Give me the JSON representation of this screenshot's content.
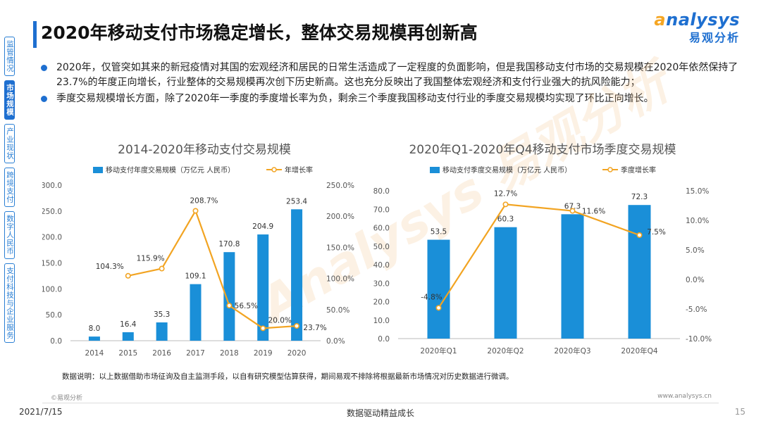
{
  "sidebar": {
    "items": [
      {
        "label": "监管情况",
        "active": false
      },
      {
        "label": "市场规模",
        "active": true
      },
      {
        "label": "产业现状",
        "active": false
      },
      {
        "label": "跨境支付",
        "active": false
      },
      {
        "label": "数字人民币",
        "active": false
      },
      {
        "label": "支付科技与企业服务",
        "active": false
      }
    ]
  },
  "header": {
    "title": "2020年移动支付市场稳定增长，整体交易规模再创新高",
    "logo_en": "nalysys",
    "logo_en_first": "a",
    "logo_cn": "易观分析"
  },
  "bullets": [
    "2020年，仅管突如其来的新冠疫情对其国的宏观经济和居民的日常生活造成了一定程度的负面影响，但是我国移动支付市场的交易规模在2020年依然保持了23.7%的年度正向增长，行业整体的交易规模再次创下历史新高。这也充分反映出了我国整体宏观经济和支付行业强大的抗风险能力；",
    "季度交易规模增长方面，除了2020年一季度的季度增长率为负，剩余三个季度我国移动支付行业的季度交易规模均实现了环比正向增长。"
  ],
  "watermark": "Analysys 易观分析",
  "chart_data": [
    {
      "type": "bar",
      "title": "2014-2020年移动支付交易规模",
      "categories": [
        "2014",
        "2015",
        "2016",
        "2017",
        "2018",
        "2019",
        "2020"
      ],
      "series": [
        {
          "name": "移动支付年度交易规模（万亿元 人民币）",
          "kind": "bar",
          "axis": "left",
          "values": [
            8.0,
            16.4,
            35.3,
            109.1,
            170.8,
            204.9,
            253.4
          ],
          "labels": [
            "8.0",
            "16.4",
            "35.3",
            "109.1",
            "170.8",
            "204.9",
            "253.4"
          ]
        },
        {
          "name": "年增长率",
          "kind": "line",
          "axis": "right",
          "values": [
            null,
            104.3,
            115.9,
            208.7,
            56.5,
            20.0,
            23.7
          ],
          "labels": [
            "",
            "104.3%",
            "115.9%",
            "208.7%",
            "56.5%",
            "20.0%",
            "23.7%"
          ]
        }
      ],
      "yticks_left": [
        "0.0",
        "50.0",
        "100.0",
        "150.0",
        "200.0",
        "250.0",
        "300.0"
      ],
      "yticks_right": [
        "0.0%",
        "50.0%",
        "100.0%",
        "150.0%",
        "200.0%",
        "250.0%"
      ],
      "ylim_left": [
        0,
        300
      ],
      "ylim_right": [
        0,
        250
      ],
      "legend": "top",
      "colors": {
        "bar": "#1a8fd8",
        "line": "#f2a422"
      }
    },
    {
      "type": "bar",
      "title": "2020年Q1-2020年Q4移动支付市场季度交易规模",
      "categories": [
        "2020年Q1",
        "2020年Q2",
        "2020年Q3",
        "2020年Q4"
      ],
      "series": [
        {
          "name": "移动支付季度交易规模（万亿元 人民币）",
          "kind": "bar",
          "axis": "left",
          "values": [
            53.5,
            60.3,
            67.3,
            72.3
          ],
          "labels": [
            "53.5",
            "60.3",
            "67.3",
            "72.3"
          ]
        },
        {
          "name": "季度增长率",
          "kind": "line",
          "axis": "right",
          "values": [
            -4.8,
            12.7,
            11.6,
            7.5
          ],
          "labels": [
            "-4.8%",
            "12.7%",
            "11.6%",
            "7.5%"
          ]
        }
      ],
      "yticks_left": [
        "0.0",
        "10.0",
        "20.0",
        "30.0",
        "40.0",
        "50.0",
        "60.0",
        "70.0",
        "80.0"
      ],
      "yticks_right": [
        "-10.0%",
        "-5.0%",
        "0.0%",
        "5.0%",
        "10.0%",
        "15.0%"
      ],
      "ylim_left": [
        0,
        80
      ],
      "ylim_right": [
        -10,
        15
      ],
      "legend": "top",
      "colors": {
        "bar": "#1a8fd8",
        "line": "#f2a422"
      }
    }
  ],
  "note": "数据说明：以上数据借助市场征询及自主监测手段，以自有研究模型估算获得，期间易观不排除将根据最新市场情况对历史数据进行微调。",
  "footer": {
    "copyright": "©易观分析",
    "website": "www.analysys.cn",
    "date": "2021/7/15",
    "slogan": "数据驱动精益成长",
    "page": "15"
  }
}
